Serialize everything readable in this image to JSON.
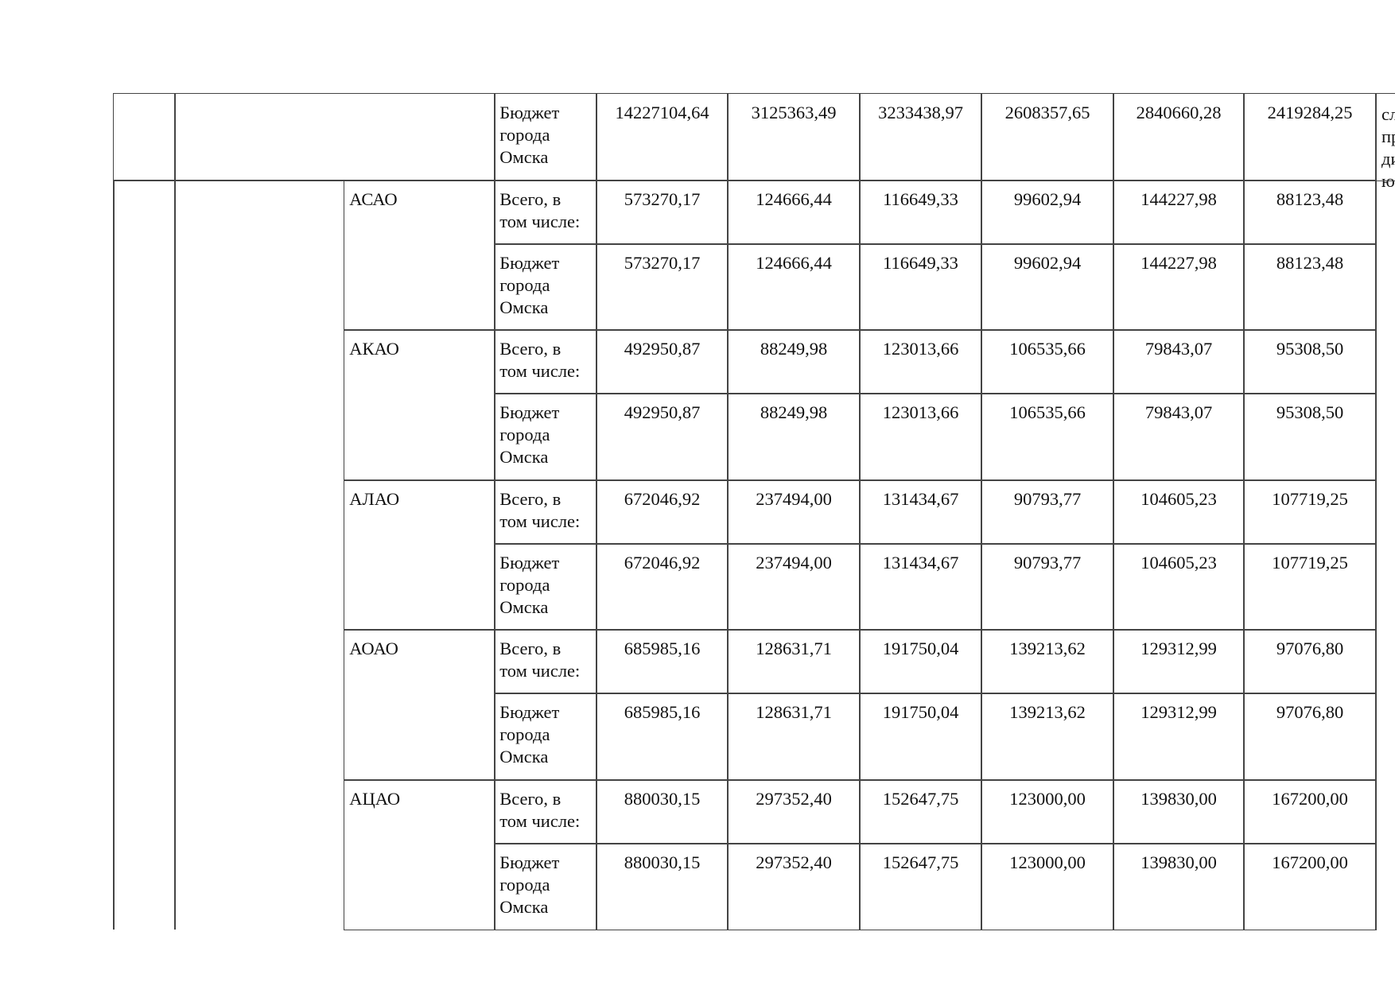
{
  "top_row": {
    "source": "Бюджет города Омска",
    "values": [
      "14227104,64",
      "3125363,49",
      "3233438,97",
      "2608357,65",
      "2840660,28",
      "2419284,25"
    ]
  },
  "side_text": [
    "сл",
    "пр",
    "ди",
    "ю"
  ],
  "labels": {
    "total": "Всего, в том числе:",
    "budget": "Бюджет города Омска"
  },
  "districts": [
    {
      "name": "АСАО",
      "total": [
        "573270,17",
        "124666,44",
        "116649,33",
        "99602,94",
        "144227,98",
        "88123,48"
      ],
      "budget": [
        "573270,17",
        "124666,44",
        "116649,33",
        "99602,94",
        "144227,98",
        "88123,48"
      ]
    },
    {
      "name": "АКАО",
      "total": [
        "492950,87",
        "88249,98",
        "123013,66",
        "106535,66",
        "79843,07",
        "95308,50"
      ],
      "budget": [
        "492950,87",
        "88249,98",
        "123013,66",
        "106535,66",
        "79843,07",
        "95308,50"
      ]
    },
    {
      "name": "АЛАО",
      "total": [
        "672046,92",
        "237494,00",
        "131434,67",
        "90793,77",
        "104605,23",
        "107719,25"
      ],
      "budget": [
        "672046,92",
        "237494,00",
        "131434,67",
        "90793,77",
        "104605,23",
        "107719,25"
      ]
    },
    {
      "name": "АОАО",
      "total": [
        "685985,16",
        "128631,71",
        "191750,04",
        "139213,62",
        "129312,99",
        "97076,80"
      ],
      "budget": [
        "685985,16",
        "128631,71",
        "191750,04",
        "139213,62",
        "129312,99",
        "97076,80"
      ]
    },
    {
      "name": "АЦАО",
      "total": [
        "880030,15",
        "297352,40",
        "152647,75",
        "123000,00",
        "139830,00",
        "167200,00"
      ],
      "budget": [
        "880030,15",
        "297352,40",
        "152647,75",
        "123000,00",
        "139830,00",
        "167200,00"
      ]
    }
  ]
}
